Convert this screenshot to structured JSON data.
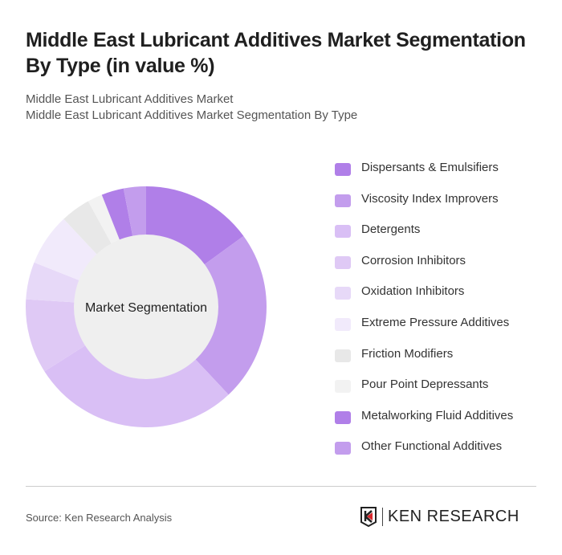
{
  "title": "Middle East Lubricant Additives Market Segmentation By Type (in value %)",
  "subtitle1": "Middle East Lubricant Additives Market",
  "subtitle2": "Middle East Lubricant Additives Market Segmentation By Type",
  "source": "Source: Ken Research Analysis",
  "logo_text": "KEN RESEARCH",
  "chart_data": {
    "type": "pie",
    "variant": "donut",
    "center_label": "Market Segmentation",
    "legend_position": "right",
    "categories": [
      "Dispersants & Emulsifiers",
      "Viscosity Index Improvers",
      "Detergents",
      "Corrosion Inhibitors",
      "Oxidation Inhibitors",
      "Extreme Pressure Additives",
      "Friction Modifiers",
      "Pour Point Depressants",
      "Metalworking Fluid Additives",
      "Other Functional Additives"
    ],
    "values": [
      15,
      23,
      28,
      10,
      5,
      7,
      4,
      2,
      3,
      3
    ],
    "colors": [
      "#b07fe8",
      "#c39ded",
      "#d9bff5",
      "#dfc9f5",
      "#e7d9f8",
      "#f1eafb",
      "#e8e8e8",
      "#f2f2f2",
      "#b07fe8",
      "#c39ded"
    ]
  }
}
